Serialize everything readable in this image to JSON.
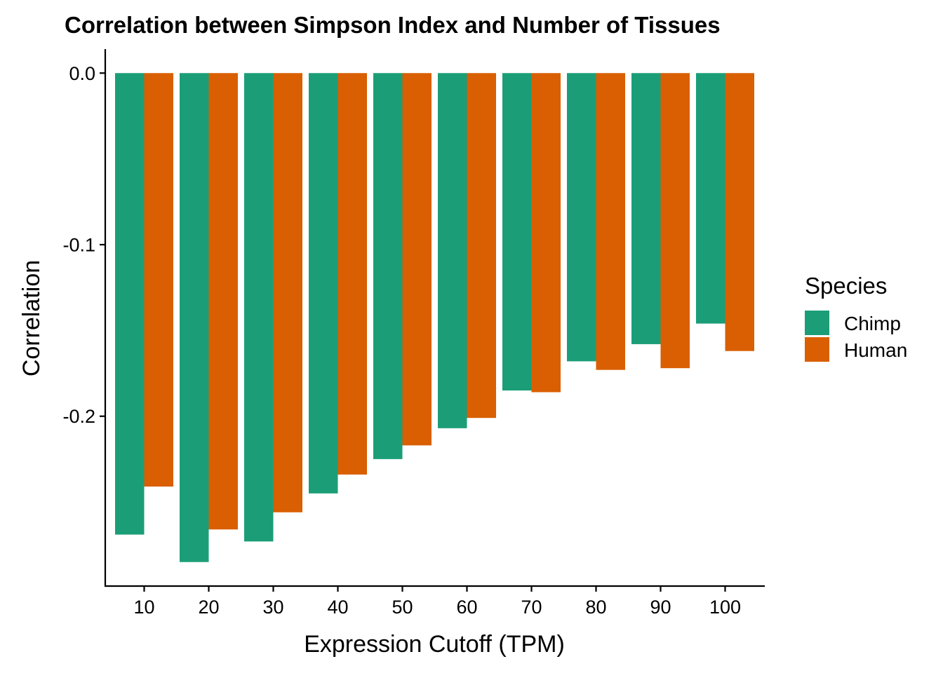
{
  "chart_data": {
    "type": "bar",
    "title": "Correlation between Simpson Index and Number of Tissues",
    "xlabel": "Expression Cutoff (TPM)",
    "ylabel": "Correlation",
    "categories": [
      "10",
      "20",
      "30",
      "40",
      "50",
      "60",
      "70",
      "80",
      "90",
      "100"
    ],
    "series": [
      {
        "name": "Chimp",
        "color": "#1B9E77",
        "values": [
          -0.269,
          -0.285,
          -0.273,
          -0.245,
          -0.225,
          -0.207,
          -0.185,
          -0.168,
          -0.158,
          -0.146
        ]
      },
      {
        "name": "Human",
        "color": "#D95F02",
        "values": [
          -0.241,
          -0.266,
          -0.256,
          -0.234,
          -0.217,
          -0.201,
          -0.186,
          -0.173,
          -0.172,
          -0.162
        ]
      }
    ],
    "ylim": [
      -0.299,
      0.014
    ],
    "yticks": [
      0.0,
      -0.1,
      -0.2
    ],
    "ytick_labels": [
      "0.0",
      "-0.1",
      "-0.2"
    ],
    "legend": {
      "title": "Species",
      "placement": "right"
    },
    "grid": false
  }
}
